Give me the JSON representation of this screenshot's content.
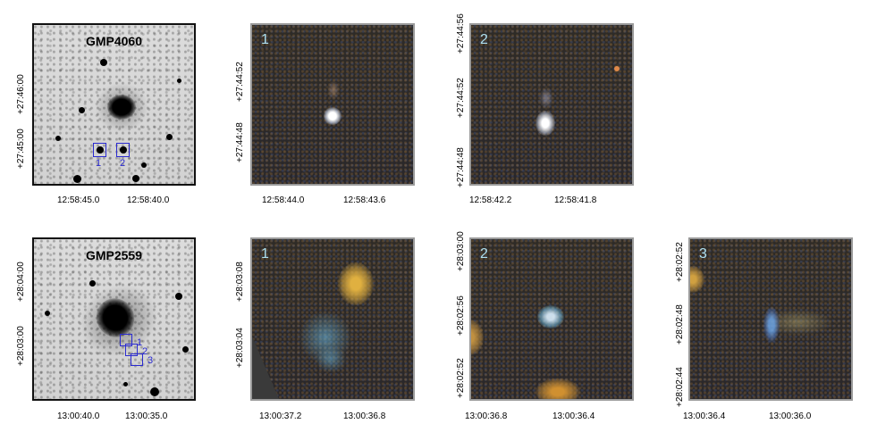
{
  "rows": [
    {
      "overview": {
        "title": "GMP4060",
        "box_labels": [
          "1",
          "2"
        ],
        "x_ticks": [
          "12:58:45.0",
          "12:58:40.0"
        ],
        "y_ticks": [
          "+27:46:00",
          "+27:45:00"
        ]
      },
      "cutouts": [
        {
          "label": "1",
          "x_ticks": [
            "12:58:44.0",
            "12:58:43.6"
          ],
          "y_ticks": [
            "+27:44:52",
            "+27:44:48"
          ]
        },
        {
          "label": "2",
          "x_ticks": [
            "12:58:42.2",
            "12:58:41.8"
          ],
          "y_ticks": [
            "+27:44:56",
            "+27:44:52",
            "+27:44:48"
          ]
        }
      ]
    },
    {
      "overview": {
        "title": "GMP2559",
        "box_labels": [
          "1",
          "2",
          "3"
        ],
        "x_ticks": [
          "13:00:40.0",
          "13:00:35.0"
        ],
        "y_ticks": [
          "+28:04:00",
          "+28:03:00"
        ]
      },
      "cutouts": [
        {
          "label": "1",
          "x_ticks": [
            "13:00:37.2",
            "13:00:36.8"
          ],
          "y_ticks": [
            "+28:03:08",
            "+28:03:04"
          ]
        },
        {
          "label": "2",
          "x_ticks": [
            "13:00:36.8",
            "13:00:36.4"
          ],
          "y_ticks": [
            "+28:03:00",
            "+28:02:56",
            "+28:02:52"
          ]
        },
        {
          "label": "3",
          "x_ticks": [
            "13:00:36.4",
            "13:00:36.0"
          ],
          "y_ticks": [
            "+28:02:52",
            "+28:02:48",
            "+28:02:44"
          ]
        }
      ]
    }
  ]
}
